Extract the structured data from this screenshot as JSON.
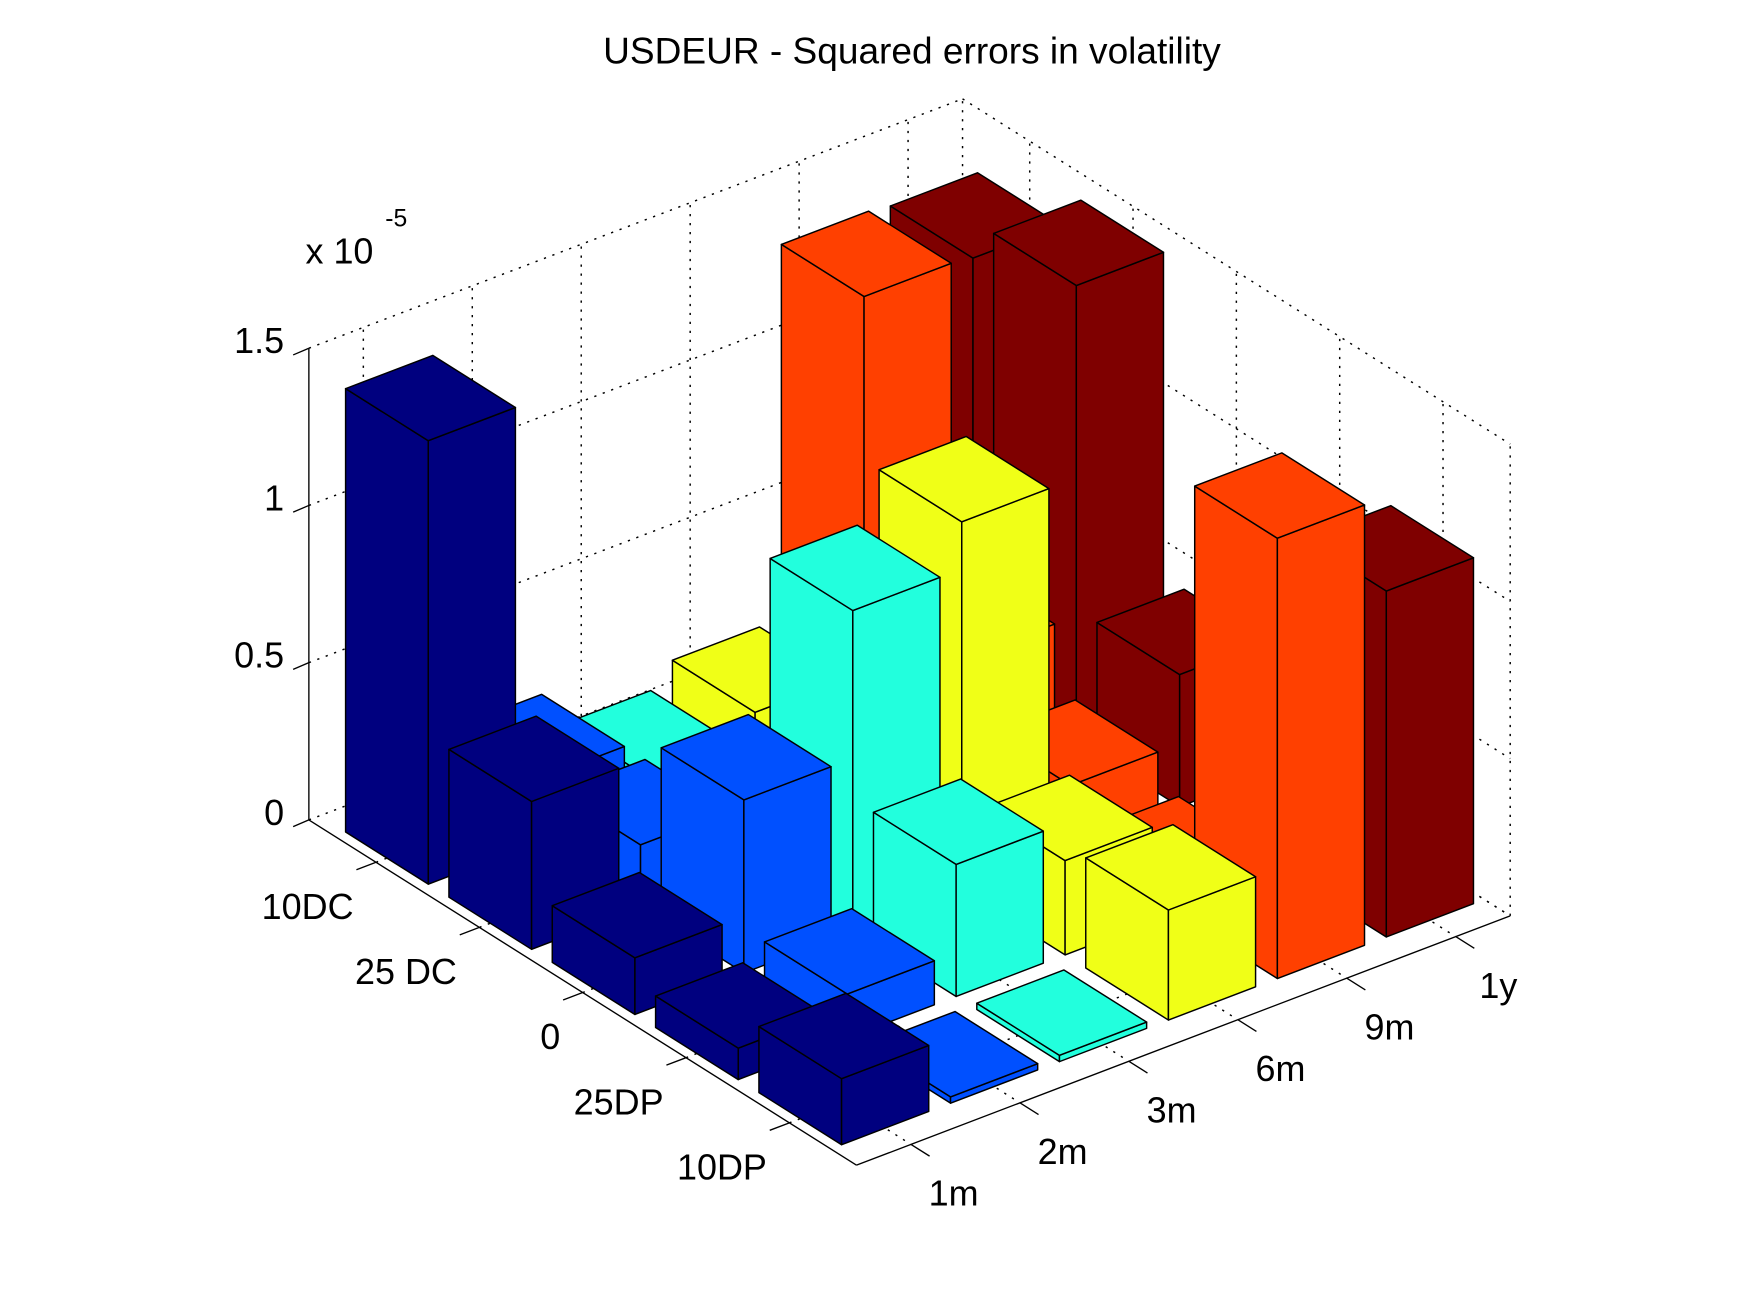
{
  "chart_data": {
    "type": "bar3d",
    "title": "USDEUR - Squared errors in volatility",
    "multiplier": {
      "base": "x 10",
      "exponent": "-5"
    },
    "categories": [
      "10DC",
      "25 DC",
      "0",
      "25DP",
      "10DP"
    ],
    "series": [
      {
        "name": "1m",
        "color": "#00007f",
        "values": [
          1.41,
          0.47,
          0.18,
          0.1,
          0.21
        ]
      },
      {
        "name": "2m",
        "color": "#0050ff",
        "values": [
          0.2,
          0.2,
          0.55,
          0.14,
          0.02
        ]
      },
      {
        "name": "3m",
        "color": "#22ffdd",
        "values": [
          0.08,
          0.05,
          1.02,
          0.42,
          0.02
        ]
      },
      {
        "name": "6m",
        "color": "#f0ff17",
        "values": [
          0.15,
          0.1,
          1.17,
          0.3,
          0.35
        ]
      },
      {
        "name": "9m",
        "color": "#ff4000",
        "values": [
          1.34,
          0.4,
          0.2,
          0.1,
          1.4
        ]
      },
      {
        "name": "1y",
        "color": "#7f0000",
        "values": [
          1.33,
          1.45,
          0.42,
          0.3,
          1.1
        ]
      }
    ],
    "zlim": [
      0,
      1.5
    ],
    "zticks": [
      0,
      0.5,
      1,
      1.5
    ],
    "grid": true
  }
}
